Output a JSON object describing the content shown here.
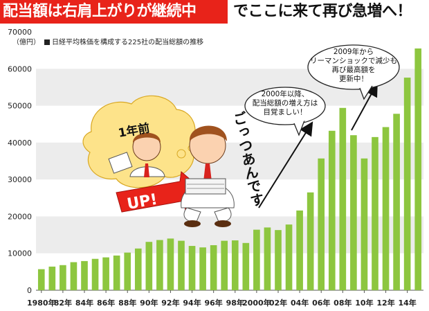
{
  "header": {
    "title_highlight": "配当額は右肩上がりが継続中",
    "title_rest": "でここに来て再び急増へ！"
  },
  "chart_data": {
    "type": "bar",
    "title": "日経平均株価を構成する225社の配当総額の推移",
    "ylabel": "（億円）",
    "xlabel": "",
    "ylim": [
      0,
      70000
    ],
    "yticks": [
      0,
      10000,
      20000,
      30000,
      40000,
      50000,
      60000,
      70000
    ],
    "grid": true,
    "bar_color": "#8dc63f",
    "band_color": "#ececec",
    "categories": [
      "1980",
      "1981",
      "1982",
      "1983",
      "1984",
      "1985",
      "1986",
      "1987",
      "1988",
      "1989",
      "1990",
      "1991",
      "1992",
      "1993",
      "1994",
      "1995",
      "1996",
      "1997",
      "1998",
      "1999",
      "2000",
      "2001",
      "2002",
      "2003",
      "2004",
      "2005",
      "2006",
      "2007",
      "2008",
      "2009",
      "2010",
      "2011",
      "2012",
      "2013",
      "2014",
      "2015"
    ],
    "values": [
      5700,
      6400,
      6800,
      7600,
      7900,
      8500,
      8900,
      9400,
      10200,
      11300,
      13100,
      13600,
      14000,
      13400,
      12000,
      11600,
      12200,
      13400,
      13500,
      12800,
      16400,
      17000,
      16300,
      17800,
      21600,
      26500,
      35700,
      43200,
      49400,
      42000,
      35700,
      41500,
      44200,
      47800,
      57600,
      65500
    ],
    "tick_labels": [
      {
        "text": "1980年",
        "index": 0
      },
      {
        "text": "82年",
        "index": 2
      },
      {
        "text": "84年",
        "index": 4
      },
      {
        "text": "86年",
        "index": 6
      },
      {
        "text": "88年",
        "index": 8
      },
      {
        "text": "90年",
        "index": 10
      },
      {
        "text": "92年",
        "index": 12
      },
      {
        "text": "94年",
        "index": 14
      },
      {
        "text": "96年",
        "index": 16
      },
      {
        "text": "98年",
        "index": 18
      },
      {
        "text": "2000年",
        "index": 20
      },
      {
        "text": "02年",
        "index": 22
      },
      {
        "text": "04年",
        "index": 24
      },
      {
        "text": "06年",
        "index": 26
      },
      {
        "text": "08年",
        "index": 28
      },
      {
        "text": "10年",
        "index": 30
      },
      {
        "text": "12年",
        "index": 32
      },
      {
        "text": "14年",
        "index": 34
      }
    ],
    "annotations": [
      {
        "text": "2000年以降、\n配当総額の増え方は\n目覚ましい！"
      },
      {
        "text": "2009年から\nリーマンショックで減少も\n再び最高額を\n更新中！"
      }
    ]
  },
  "illustration": {
    "bubble_label": "1年前",
    "arrow_label": "UP!",
    "exclaim": "ごっつあんです"
  }
}
